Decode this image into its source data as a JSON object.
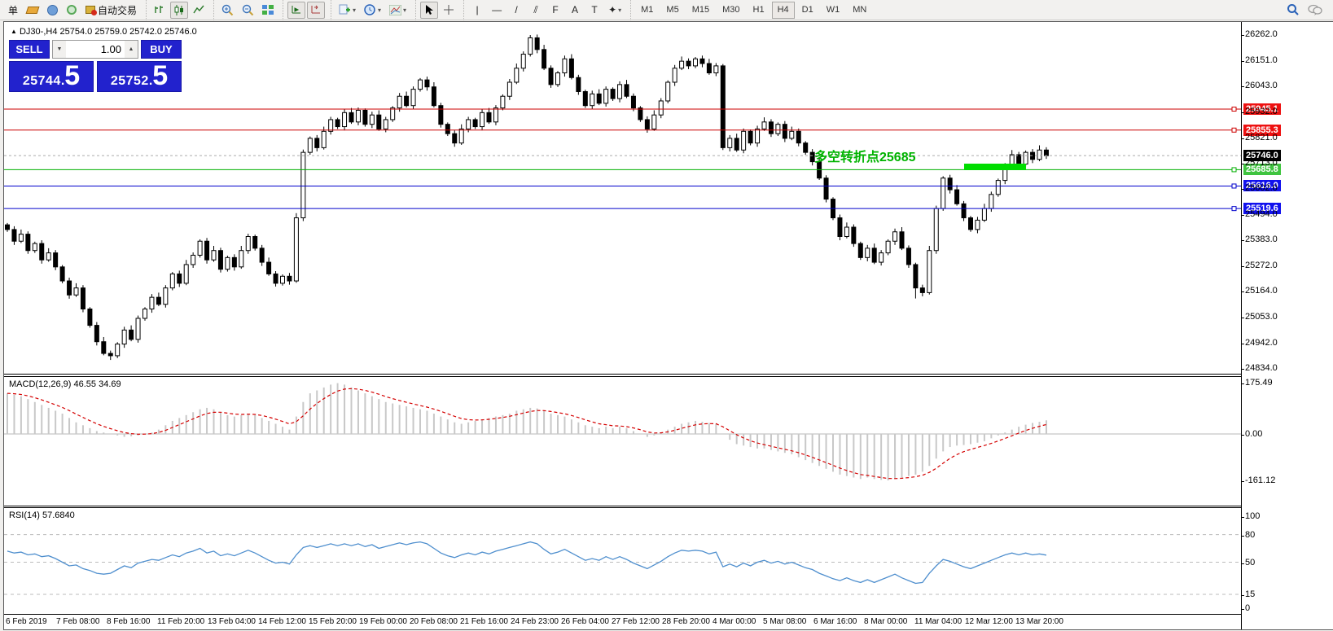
{
  "toolbar": {
    "new_order_label": "单",
    "autotrading_label": "自动交易",
    "timeframes": [
      "M1",
      "M5",
      "M15",
      "M30",
      "H1",
      "H4",
      "D1",
      "W1",
      "MN"
    ],
    "active_timeframe": "H4",
    "tool_letters": {
      "vline": "|",
      "hline": "—",
      "trendline": "/",
      "channel": "⫽",
      "fibo": "F",
      "text": "A",
      "label": "T",
      "shapes": "✦"
    }
  },
  "chart": {
    "header": {
      "collapse": "▲",
      "symbol_period": "DJ30-,H4",
      "open": "25754.0",
      "high": "25759.0",
      "low": "25742.0",
      "close": "25746.0"
    },
    "trade_panel": {
      "sell_label": "SELL",
      "buy_label": "BUY",
      "volume": "1.00",
      "sell_price_main": "25744",
      "sell_price_frac": "5",
      "buy_price_main": "25752",
      "buy_price_frac": "5"
    },
    "annotation": {
      "text": "多空转折点25685",
      "color": "#00b300"
    },
    "levels": [
      {
        "label": "25945.1",
        "value": 25945.1,
        "line": "#cc0000",
        "bg": "#ee1111",
        "dashed": false
      },
      {
        "label": "25855.3",
        "value": 25855.3,
        "line": "#cc0000",
        "bg": "#ee1111",
        "dashed": false
      },
      {
        "label": "25746.0",
        "value": 25746.0,
        "line": "#aaaaaa",
        "bg": "#000000",
        "dashed": true
      },
      {
        "label": "25685.8",
        "value": 25685.8,
        "line": "#00b000",
        "bg": "#3fc43f",
        "dashed": false
      },
      {
        "label": "25616.0",
        "value": 25616.0,
        "line": "#0000cc",
        "bg": "#1111ee",
        "dashed": false
      },
      {
        "label": "25519.6",
        "value": 25519.6,
        "line": "#0000cc",
        "bg": "#1111ee",
        "dashed": false
      }
    ],
    "price_axis_ticks": [
      "26262.0",
      "26151.0",
      "26043.0",
      "25932.0",
      "25821.0",
      "25713.0",
      "25602.0",
      "25494.0",
      "25383.0",
      "25272.0",
      "25164.0",
      "25053.0",
      "24942.0",
      "24834.0"
    ],
    "time_axis_labels": [
      "6 Feb 2019",
      "7 Feb 08:00",
      "8 Feb 16:00",
      "11 Feb 20:00",
      "13 Feb 04:00",
      "14 Feb 12:00",
      "15 Feb 20:00",
      "19 Feb 00:00",
      "20 Feb 08:00",
      "21 Feb 16:00",
      "24 Feb 23:00",
      "26 Feb 04:00",
      "27 Feb 12:00",
      "28 Feb 20:00",
      "4 Mar 00:00",
      "5 Mar 08:00",
      "6 Mar 16:00",
      "8 Mar 00:00",
      "11 Mar 04:00",
      "12 Mar 12:00",
      "13 Mar 20:00"
    ]
  },
  "macd": {
    "label": "MACD(12,26,9)",
    "main_value": "46.55",
    "signal_value": "34.69",
    "axis": [
      "175.49",
      "0.00",
      "-161.12"
    ],
    "axis_values": [
      175.49,
      0,
      -161.12
    ],
    "hist_color": "#c8c8c8",
    "signal_color": "#d40000"
  },
  "rsi": {
    "label": "RSI(14)",
    "value": "57.6840",
    "axis": [
      "100",
      "80",
      "50",
      "15",
      "0"
    ],
    "axis_values": [
      100,
      80,
      50,
      15,
      0
    ],
    "level_lines": [
      80,
      50,
      15
    ],
    "line_color": "#4f8fce"
  },
  "chart_data": {
    "type": "candlestick",
    "symbol": "DJ30-",
    "timeframe": "H4",
    "price_range": [
      24834.0,
      26262.0
    ],
    "closes": [
      25430,
      25380,
      25410,
      25340,
      25370,
      25300,
      25330,
      25270,
      25210,
      25150,
      25180,
      25090,
      25020,
      24950,
      24900,
      24890,
      24940,
      25000,
      24960,
      25050,
      25090,
      25140,
      25110,
      25180,
      25240,
      25200,
      25280,
      25320,
      25380,
      25300,
      25340,
      25260,
      25310,
      25270,
      25340,
      25400,
      25350,
      25290,
      25240,
      25200,
      25230,
      25210,
      25480,
      25760,
      25820,
      25780,
      25850,
      25900,
      25870,
      25930,
      25890,
      25940,
      25880,
      25920,
      25860,
      25900,
      25950,
      26000,
      25960,
      26030,
      26070,
      26040,
      25960,
      25880,
      25840,
      25800,
      25860,
      25900,
      25870,
      25930,
      25890,
      25950,
      26000,
      26060,
      26120,
      26180,
      26250,
      26200,
      26120,
      26050,
      26100,
      26160,
      26080,
      26020,
      25960,
      26010,
      25970,
      26030,
      25990,
      26050,
      26000,
      25950,
      25900,
      25860,
      25920,
      25980,
      26060,
      26120,
      26150,
      26130,
      26160,
      26140,
      26100,
      26130,
      25780,
      25820,
      25770,
      25850,
      25800,
      25860,
      25890,
      25840,
      25880,
      25820,
      25850,
      25800,
      25760,
      25720,
      25650,
      25560,
      25480,
      25400,
      25440,
      25370,
      25310,
      25350,
      25290,
      25330,
      25380,
      25420,
      25350,
      25280,
      25180,
      25160,
      25340,
      25520,
      25650,
      25600,
      25540,
      25480,
      25430,
      25470,
      25520,
      25580,
      25640,
      25700,
      25750,
      25710,
      25760,
      25730,
      25770,
      25746
    ],
    "key_points": {
      "highest": {
        "index": 76,
        "price": 26262
      },
      "lowest": {
        "index": 15,
        "price": 24872
      },
      "swing_low": {
        "index": 132,
        "price": 25135
      }
    },
    "macd_hist": [
      140,
      135,
      130,
      120,
      110,
      100,
      90,
      80,
      70,
      55,
      40,
      30,
      20,
      10,
      5,
      0,
      -5,
      -10,
      -8,
      -5,
      0,
      5,
      15,
      30,
      45,
      55,
      65,
      75,
      85,
      90,
      85,
      75,
      65,
      60,
      65,
      70,
      65,
      55,
      45,
      35,
      25,
      15,
      60,
      110,
      140,
      150,
      160,
      170,
      175,
      170,
      160,
      150,
      140,
      130,
      120,
      110,
      105,
      100,
      95,
      90,
      85,
      80,
      70,
      60,
      50,
      40,
      35,
      40,
      45,
      50,
      55,
      60,
      65,
      70,
      80,
      85,
      90,
      88,
      80,
      70,
      65,
      60,
      50,
      40,
      30,
      25,
      20,
      25,
      20,
      25,
      20,
      10,
      0,
      -10,
      -5,
      5,
      15,
      25,
      35,
      40,
      45,
      42,
      38,
      35,
      0,
      -20,
      -35,
      -40,
      -45,
      -50,
      -50,
      -55,
      -60,
      -65,
      -70,
      -80,
      -90,
      -100,
      -110,
      -120,
      -130,
      -140,
      -145,
      -150,
      -155,
      -150,
      -155,
      -158,
      -160,
      -155,
      -150,
      -145,
      -140,
      -130,
      -110,
      -85,
      -60,
      -45,
      -40,
      -38,
      -35,
      -30,
      -25,
      -15,
      -5,
      5,
      15,
      25,
      32,
      38,
      42,
      47
    ],
    "rsi_values": [
      62,
      60,
      61,
      58,
      59,
      56,
      57,
      54,
      50,
      46,
      47,
      43,
      41,
      38,
      37,
      38,
      42,
      46,
      44,
      49,
      51,
      53,
      52,
      55,
      58,
      56,
      60,
      62,
      65,
      60,
      62,
      57,
      59,
      57,
      60,
      63,
      60,
      56,
      52,
      49,
      50,
      48,
      58,
      66,
      68,
      66,
      68,
      70,
      68,
      70,
      68,
      70,
      67,
      69,
      65,
      67,
      69,
      71,
      69,
      71,
      72,
      70,
      65,
      60,
      57,
      55,
      58,
      60,
      58,
      61,
      59,
      62,
      64,
      66,
      68,
      70,
      72,
      70,
      64,
      59,
      61,
      64,
      60,
      56,
      52,
      54,
      52,
      56,
      53,
      56,
      53,
      49,
      46,
      43,
      47,
      51,
      56,
      60,
      63,
      62,
      63,
      62,
      59,
      61,
      45,
      48,
      45,
      49,
      46,
      50,
      52,
      49,
      51,
      48,
      50,
      47,
      44,
      42,
      38,
      35,
      32,
      30,
      33,
      30,
      28,
      31,
      28,
      31,
      34,
      37,
      33,
      30,
      27,
      28,
      38,
      46,
      53,
      51,
      48,
      45,
      43,
      46,
      49,
      52,
      55,
      58,
      60,
      58,
      60,
      58,
      59,
      57.7
    ]
  }
}
